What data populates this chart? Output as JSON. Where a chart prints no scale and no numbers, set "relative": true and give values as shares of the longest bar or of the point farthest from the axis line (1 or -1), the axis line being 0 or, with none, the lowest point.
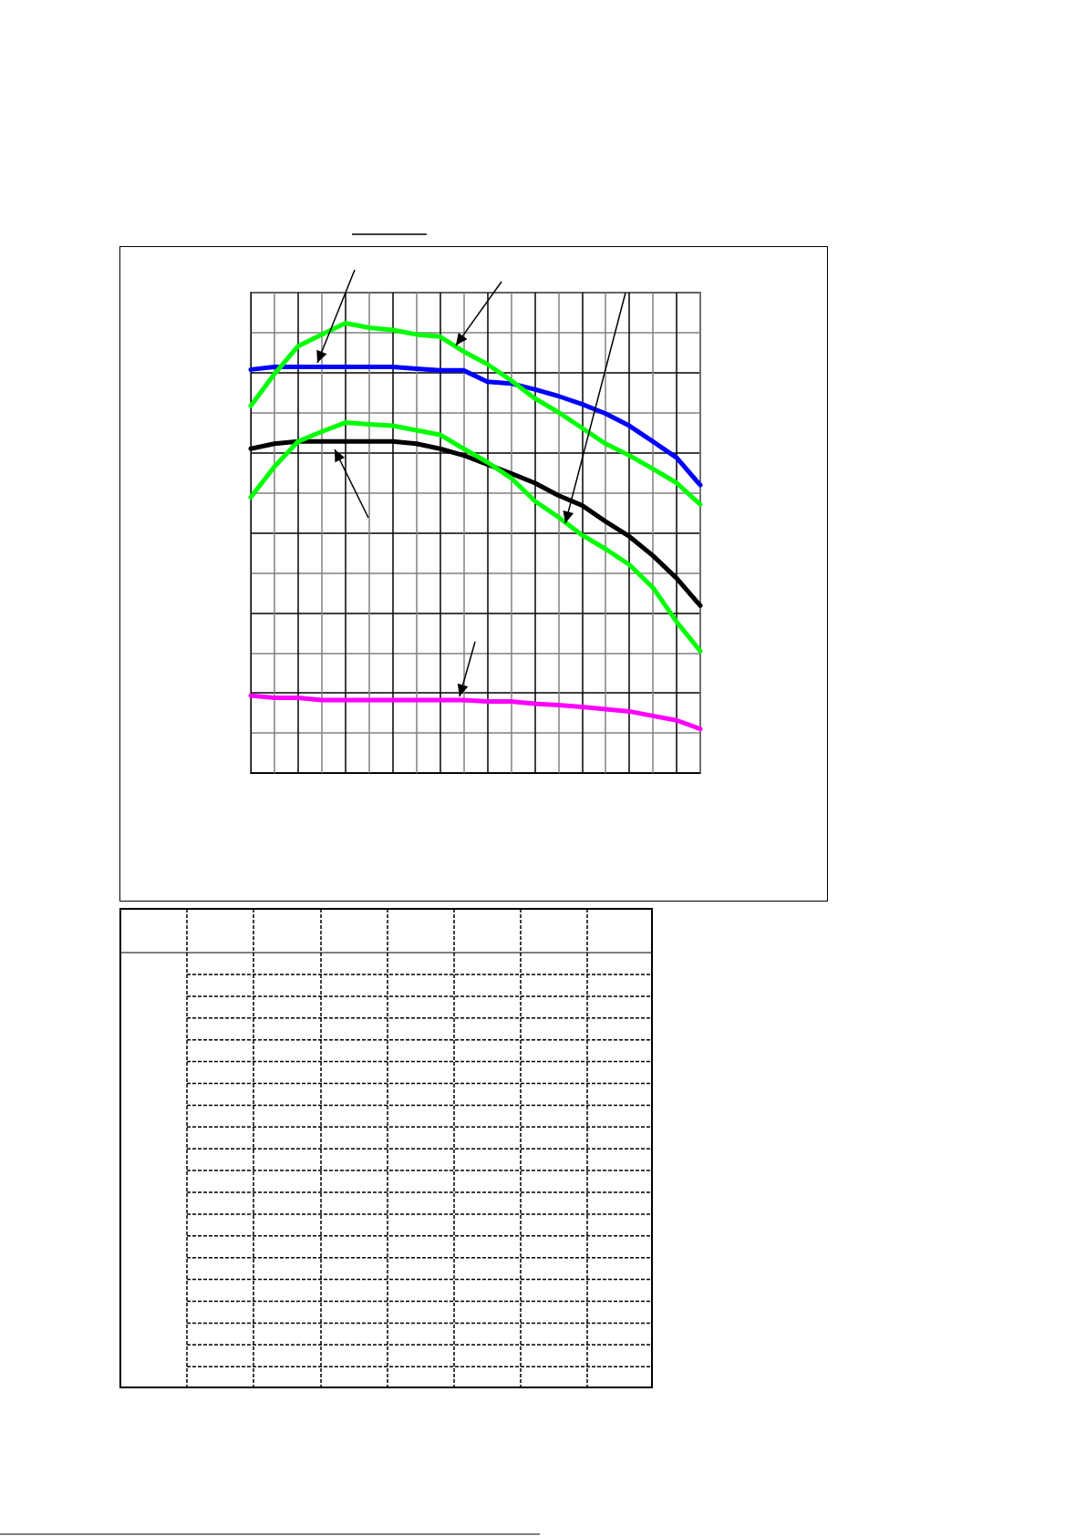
{
  "chart_data": {
    "type": "line",
    "relative": true,
    "grid": true,
    "marker": "none",
    "line_style": "solid",
    "categories": [
      null,
      null,
      null,
      null,
      null,
      null,
      null,
      null,
      null,
      null,
      null,
      null,
      null,
      null,
      null,
      null,
      null,
      null,
      null,
      null
    ],
    "series": [
      {
        "color": "#0000ff",
        "values": [
          0.897,
          0.903,
          0.903,
          0.903,
          0.903,
          0.903,
          0.903,
          0.899,
          0.895,
          0.895,
          0.87,
          0.866,
          0.853,
          0.838,
          0.82,
          0.799,
          0.772,
          0.737,
          0.701,
          0.64
        ]
      },
      {
        "color": "#00ff00",
        "values": [
          0.816,
          0.887,
          0.949,
          0.975,
          1.0,
          0.99,
          0.985,
          0.975,
          0.97,
          0.937,
          0.909,
          0.873,
          0.833,
          0.802,
          0.767,
          0.732,
          0.706,
          0.676,
          0.645,
          0.597
        ]
      },
      {
        "color": "#000000",
        "values": [
          0.721,
          0.732,
          0.737,
          0.737,
          0.737,
          0.737,
          0.737,
          0.732,
          0.721,
          0.706,
          0.686,
          0.666,
          0.645,
          0.617,
          0.595,
          0.559,
          0.526,
          0.483,
          0.433,
          0.372
        ]
      },
      {
        "color": "#00ff00",
        "values": [
          0.613,
          0.681,
          0.737,
          0.759,
          0.779,
          0.775,
          0.772,
          0.762,
          0.752,
          0.721,
          0.691,
          0.656,
          0.605,
          0.569,
          0.529,
          0.498,
          0.463,
          0.412,
          0.336,
          0.271
        ]
      },
      {
        "color": "#ff00ff",
        "values": [
          0.172,
          0.167,
          0.167,
          0.162,
          0.162,
          0.162,
          0.162,
          0.162,
          0.162,
          0.162,
          0.159,
          0.159,
          0.154,
          0.151,
          0.147,
          0.142,
          0.137,
          0.127,
          0.117,
          0.098
        ]
      }
    ]
  }
}
